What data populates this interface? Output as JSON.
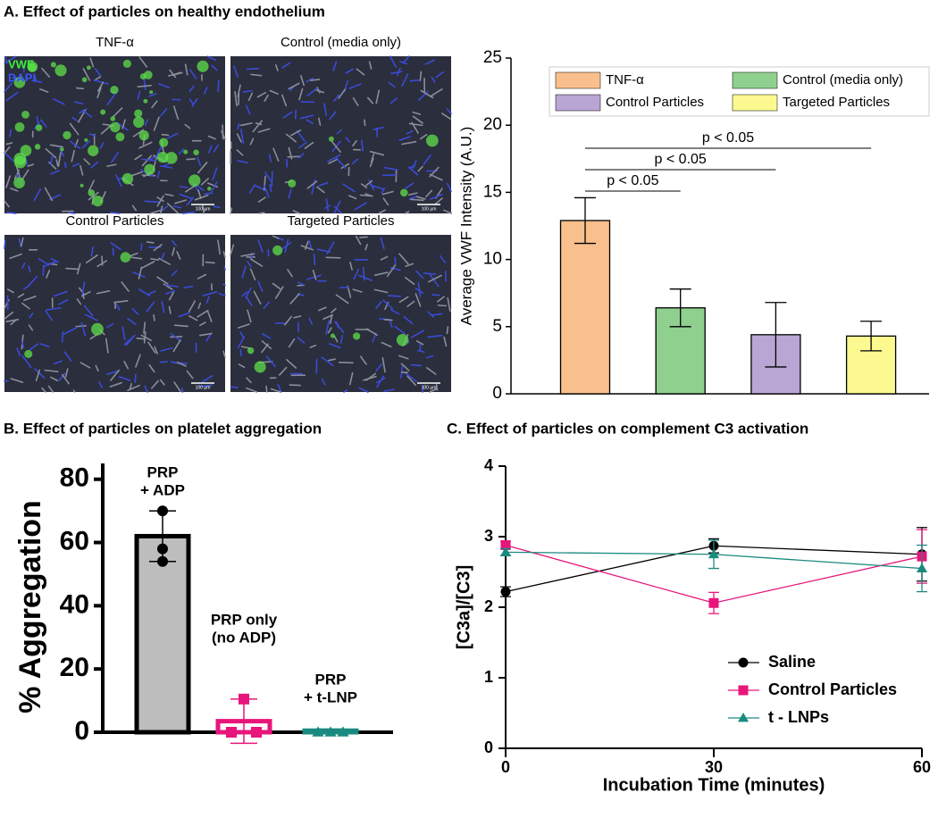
{
  "panel_titles": [
    "A. Effect of particles on healthy endothelium",
    "B. Effect of particles on platelet aggregation",
    "C. Effect of particles on complement C3 activation"
  ],
  "micrographs": {
    "labels": [
      "TNF-α",
      "Control (media only)",
      "Control Particles",
      "Targeted Particles"
    ],
    "stains": [
      "VWF",
      "DAPI"
    ],
    "scale_bar": "100 µm"
  },
  "chart_data": [
    {
      "type": "bar",
      "categories": [
        "TNF-α",
        "Control (media only)",
        "Control Particles",
        "Targeted Particles"
      ],
      "values": [
        12.9,
        6.4,
        4.4,
        4.3
      ],
      "errors": [
        1.7,
        1.4,
        2.4,
        1.1
      ],
      "colors": [
        "#f9bf8c",
        "#8fd08f",
        "#b9a6d4",
        "#fbf98f"
      ],
      "ylabel": "Average VWF Intensity (A.U.)",
      "ylim": [
        0,
        25
      ],
      "yticks": [
        0,
        5,
        10,
        15,
        20,
        25
      ],
      "annotations": [
        "p < 0.05",
        "p < 0.05",
        "p < 0.05"
      ],
      "legend": "top"
    },
    {
      "type": "bar_points",
      "categories": [
        [
          "PRP",
          "+ ADP"
        ],
        [
          "PRP only",
          "(no ADP)"
        ],
        [
          "PRP",
          "+ t-LNP"
        ]
      ],
      "values": [
        62,
        3.5,
        0.5
      ],
      "errors": [
        8,
        7,
        0.5
      ],
      "points": [
        [
          70,
          58,
          54
        ],
        [
          10.5,
          0,
          0
        ],
        [
          0,
          0,
          0
        ]
      ],
      "fill_colors": [
        "#bdbdbd",
        "#ffffff",
        "#ffffff"
      ],
      "edge_colors": [
        "#000000",
        "#e8157a",
        "#1a8a80"
      ],
      "markers": [
        "circle",
        "square",
        "triangle"
      ],
      "ylabel": "% Aggregation",
      "ylim": [
        0,
        85
      ],
      "yticks": [
        0,
        20,
        40,
        60,
        80
      ]
    },
    {
      "type": "line",
      "x": [
        0,
        30,
        60
      ],
      "xlim": [
        0,
        60
      ],
      "xticks": [
        0,
        30,
        60
      ],
      "ylim": [
        0,
        4
      ],
      "yticks": [
        0,
        1,
        2,
        3,
        4
      ],
      "xlabel": "Incubation Time (minutes)",
      "ylabel": "[C3a]/[C3]",
      "series": [
        {
          "name": "Saline",
          "color": "#000000",
          "marker": "circle",
          "values": [
            2.22,
            2.87,
            2.75
          ],
          "errors": [
            0.07,
            0.1,
            0.38
          ]
        },
        {
          "name": "Control Particles",
          "color": "#e8157a",
          "marker": "square",
          "values": [
            2.88,
            2.06,
            2.72
          ],
          "errors": [
            0.05,
            0.15,
            0.38
          ]
        },
        {
          "name": "t - LNPs",
          "color": "#1a8a80",
          "marker": "triangle",
          "values": [
            2.78,
            2.75,
            2.55
          ],
          "errors": [
            0.05,
            0.2,
            0.33
          ]
        }
      ],
      "legend": "lower right"
    }
  ]
}
